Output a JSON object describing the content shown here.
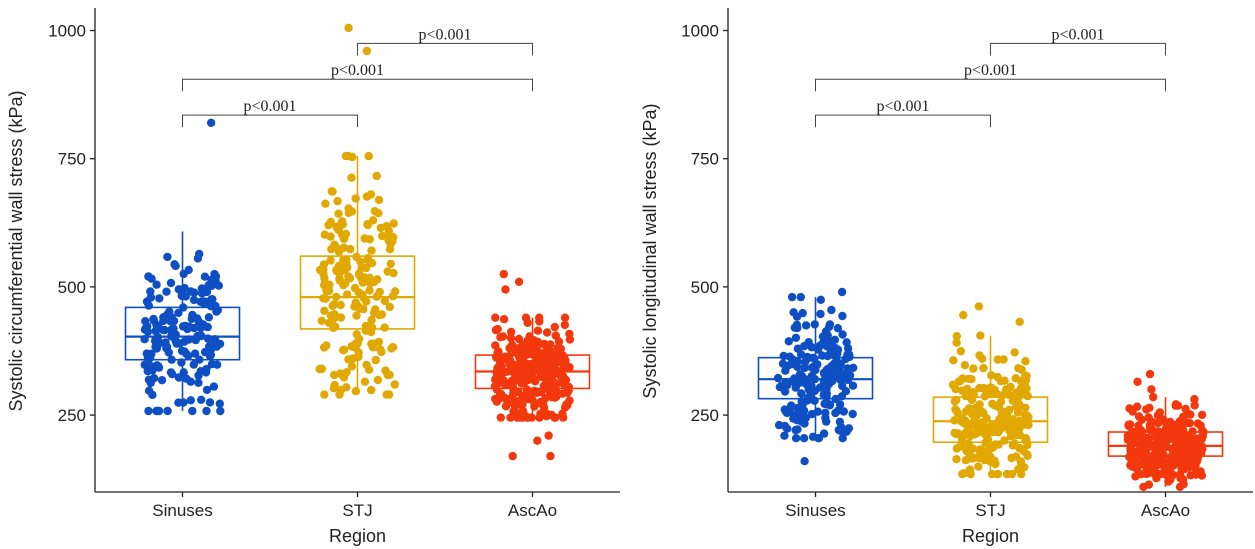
{
  "chart_data": [
    {
      "type": "box",
      "xlabel": "Region",
      "ylabel": "Systolic circumferential wall stress (kPa)",
      "ylim": [
        100,
        1040
      ],
      "yticks": [
        250,
        500,
        750,
        1000
      ],
      "categories": [
        "Sinuses",
        "STJ",
        "AscAo"
      ],
      "colors": [
        "#0f4fc4",
        "#e0a800",
        "#f2380c"
      ],
      "boxes": [
        {
          "category": "Sinuses",
          "q1": 358,
          "median": 403,
          "q3": 460,
          "whisker_low": 258,
          "whisker_high": 608,
          "outliers": [
            820
          ],
          "n": 170
        },
        {
          "category": "STJ",
          "q1": 418,
          "median": 480,
          "q3": 560,
          "whisker_low": 290,
          "whisker_high": 755,
          "outliers": [
            1005,
            960
          ],
          "n": 200
        },
        {
          "category": "AscAo",
          "q1": 302,
          "median": 335,
          "q3": 367,
          "whisker_low": 245,
          "whisker_high": 440,
          "outliers": [
            495,
            510,
            525,
            200,
            210,
            170,
            170
          ],
          "n": 270
        }
      ],
      "annotations": [
        {
          "from": "Sinuses",
          "to": "STJ",
          "label": "p<0.001",
          "y": 835
        },
        {
          "from": "Sinuses",
          "to": "AscAo",
          "label": "p<0.001",
          "y": 905
        },
        {
          "from": "STJ",
          "to": "AscAo",
          "label": "p<0.001",
          "y": 975
        }
      ]
    },
    {
      "type": "box",
      "xlabel": "Region",
      "ylabel": "Systolic longitudinal wall stress (kPa)",
      "ylim": [
        100,
        1040
      ],
      "yticks": [
        250,
        500,
        750,
        1000
      ],
      "categories": [
        "Sinuses",
        "STJ",
        "AscAo"
      ],
      "colors": [
        "#0f4fc4",
        "#e0a800",
        "#f2380c"
      ],
      "boxes": [
        {
          "category": "Sinuses",
          "q1": 282,
          "median": 320,
          "q3": 362,
          "whisker_low": 205,
          "whisker_high": 480,
          "outliers": [
            160,
            490
          ],
          "n": 200
        },
        {
          "category": "STJ",
          "q1": 197,
          "median": 238,
          "q3": 285,
          "whisker_low": 135,
          "whisker_high": 405,
          "outliers": [
            445,
            462,
            432
          ],
          "n": 230
        },
        {
          "category": "AscAo",
          "q1": 170,
          "median": 190,
          "q3": 217,
          "whisker_low": 110,
          "whisker_high": 285,
          "outliers": [
            300,
            315,
            330
          ],
          "n": 290
        }
      ],
      "annotations": [
        {
          "from": "Sinuses",
          "to": "STJ",
          "label": "p<0.001",
          "y": 835
        },
        {
          "from": "Sinuses",
          "to": "AscAo",
          "label": "p<0.001",
          "y": 905
        },
        {
          "from": "STJ",
          "to": "AscAo",
          "label": "p<0.001",
          "y": 975
        }
      ]
    }
  ]
}
